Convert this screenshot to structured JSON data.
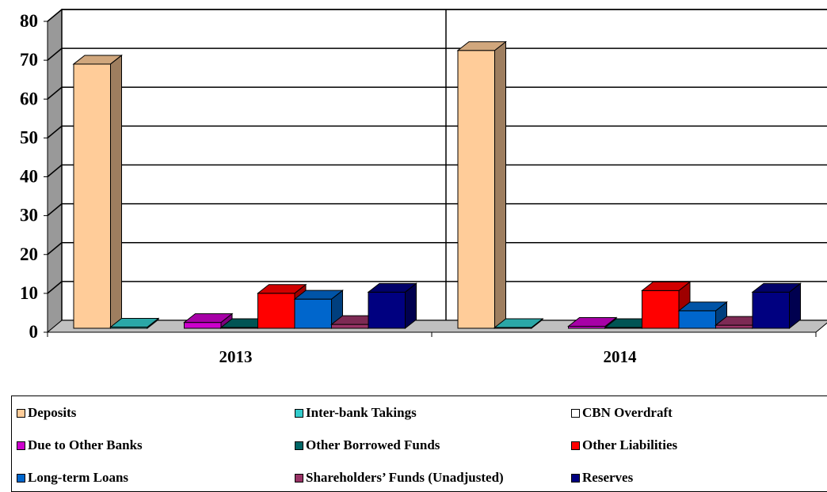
{
  "chart_data": {
    "type": "bar",
    "style": "3d-clustered-column",
    "categories": [
      "2013",
      "2014"
    ],
    "ylim": [
      0,
      80
    ],
    "yticks": [
      0,
      10,
      20,
      30,
      40,
      50,
      60,
      70,
      80
    ],
    "grid": true,
    "legend_position": "bottom",
    "series": [
      {
        "name": "Deposits",
        "color": "#FFCC99",
        "values": [
          68,
          71.5
        ]
      },
      {
        "name": "Inter-bank Takings",
        "color": "#33CCCC",
        "values": [
          0.3,
          0.2
        ]
      },
      {
        "name": "CBN Overdraft",
        "color": "#FFFFFF",
        "values": [
          0,
          0
        ]
      },
      {
        "name": "Due to Other Banks",
        "color": "#CC00CC",
        "values": [
          1.5,
          0.5
        ]
      },
      {
        "name": "Other Borrowed Funds",
        "color": "#006666",
        "values": [
          0.2,
          0.2
        ]
      },
      {
        "name": "Other Liabilities",
        "color": "#FF0000",
        "values": [
          9,
          9.7
        ]
      },
      {
        "name": "Long-term Loans",
        "color": "#0066CC",
        "values": [
          7.5,
          4.5
        ]
      },
      {
        "name": "Shareholders’ Funds (Unadjusted)",
        "color": "#993366",
        "values": [
          1,
          0.8
        ]
      },
      {
        "name": "Reserves",
        "color": "#000080",
        "values": [
          9.3,
          9.3
        ]
      }
    ]
  }
}
